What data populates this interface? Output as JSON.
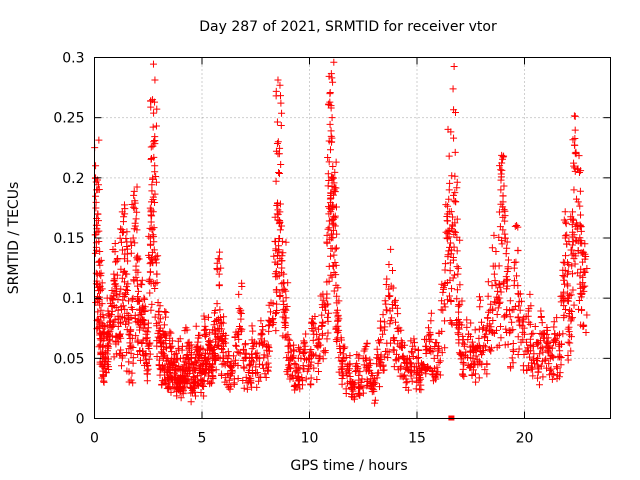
{
  "chart_data": {
    "type": "scatter",
    "title": "Day 287 of 2021, SRMTID for receiver vtor",
    "xlabel": "GPS time / hours",
    "ylabel": "SRMTID / TECUs",
    "xlim": [
      0,
      24
    ],
    "ylim": [
      0,
      0.3
    ],
    "x_ticks": [
      0,
      5,
      10,
      15,
      20
    ],
    "x_tick_labels": [
      "0",
      "5",
      "10",
      "15",
      "20"
    ],
    "y_ticks": [
      0,
      0.05,
      0.1,
      0.15,
      0.2,
      0.25,
      0.3
    ],
    "y_tick_labels": [
      "0",
      "0.05",
      "0.1",
      "0.15",
      "0.2",
      "0.25",
      "0.3"
    ],
    "grid": true,
    "marker": "plus",
    "color": "#ff0000",
    "series": [
      {
        "name": "SRMTID",
        "note": "dense scatter; representative points read from the figure",
        "points": [
          [
            0.05,
            0.2
          ],
          [
            0.1,
            0.19
          ],
          [
            0.15,
            0.17
          ],
          [
            0.2,
            0.13
          ],
          [
            0.25,
            0.11
          ],
          [
            0.3,
            0.09
          ],
          [
            0.35,
            0.07
          ],
          [
            0.4,
            0.06
          ],
          [
            0.5,
            0.05
          ],
          [
            0.6,
            0.07
          ],
          [
            0.7,
            0.08
          ],
          [
            0.8,
            0.1
          ],
          [
            0.9,
            0.12
          ],
          [
            1.0,
            0.11
          ],
          [
            1.1,
            0.09
          ],
          [
            1.2,
            0.08
          ],
          [
            1.3,
            0.14
          ],
          [
            1.4,
            0.17
          ],
          [
            1.5,
            0.12
          ],
          [
            1.6,
            0.07
          ],
          [
            1.7,
            0.06
          ],
          [
            1.8,
            0.15
          ],
          [
            1.9,
            0.16
          ],
          [
            2.0,
            0.11
          ],
          [
            2.1,
            0.09
          ],
          [
            2.2,
            0.08
          ],
          [
            2.3,
            0.1
          ],
          [
            2.4,
            0.07
          ],
          [
            2.5,
            0.06
          ],
          [
            2.6,
            0.15
          ],
          [
            2.65,
            0.18
          ],
          [
            2.7,
            0.265
          ],
          [
            2.75,
            0.23
          ],
          [
            2.8,
            0.21
          ],
          [
            2.9,
            0.12
          ],
          [
            3.0,
            0.08
          ],
          [
            3.1,
            0.06
          ],
          [
            3.2,
            0.05
          ],
          [
            3.3,
            0.07
          ],
          [
            3.4,
            0.05
          ],
          [
            3.5,
            0.04
          ],
          [
            3.6,
            0.06
          ],
          [
            3.7,
            0.05
          ],
          [
            3.8,
            0.04
          ],
          [
            3.9,
            0.03
          ],
          [
            4.0,
            0.05
          ],
          [
            4.1,
            0.04
          ],
          [
            4.2,
            0.03
          ],
          [
            4.3,
            0.06
          ],
          [
            4.4,
            0.04
          ],
          [
            4.5,
            0.05
          ],
          [
            4.6,
            0.03
          ],
          [
            4.7,
            0.04
          ],
          [
            4.8,
            0.06
          ],
          [
            4.9,
            0.05
          ],
          [
            5.0,
            0.04
          ],
          [
            5.1,
            0.05
          ],
          [
            5.2,
            0.07
          ],
          [
            5.3,
            0.05
          ],
          [
            5.4,
            0.06
          ],
          [
            5.5,
            0.05
          ],
          [
            5.6,
            0.07
          ],
          [
            5.7,
            0.06
          ],
          [
            5.8,
            0.12
          ],
          [
            5.9,
            0.08
          ],
          [
            6.0,
            0.06
          ],
          [
            6.2,
            0.05
          ],
          [
            6.4,
            0.04
          ],
          [
            6.6,
            0.06
          ],
          [
            6.8,
            0.09
          ],
          [
            7.0,
            0.05
          ],
          [
            7.2,
            0.04
          ],
          [
            7.4,
            0.06
          ],
          [
            7.6,
            0.05
          ],
          [
            7.8,
            0.07
          ],
          [
            8.0,
            0.06
          ],
          [
            8.2,
            0.08
          ],
          [
            8.4,
            0.13
          ],
          [
            8.5,
            0.17
          ],
          [
            8.55,
            0.23
          ],
          [
            8.6,
            0.22
          ],
          [
            8.7,
            0.16
          ],
          [
            8.8,
            0.12
          ],
          [
            8.9,
            0.09
          ],
          [
            9.0,
            0.06
          ],
          [
            9.2,
            0.05
          ],
          [
            9.4,
            0.04
          ],
          [
            9.6,
            0.05
          ],
          [
            9.8,
            0.06
          ],
          [
            10.0,
            0.05
          ],
          [
            10.2,
            0.07
          ],
          [
            10.4,
            0.06
          ],
          [
            10.6,
            0.08
          ],
          [
            10.8,
            0.1
          ],
          [
            10.9,
            0.17
          ],
          [
            10.95,
            0.27
          ],
          [
            11.0,
            0.26
          ],
          [
            11.05,
            0.25
          ],
          [
            11.1,
            0.2
          ],
          [
            11.15,
            0.19
          ],
          [
            11.2,
            0.16
          ],
          [
            11.3,
            0.09
          ],
          [
            11.4,
            0.06
          ],
          [
            11.6,
            0.05
          ],
          [
            11.8,
            0.04
          ],
          [
            12.0,
            0.03
          ],
          [
            12.2,
            0.04
          ],
          [
            12.4,
            0.03
          ],
          [
            12.6,
            0.05
          ],
          [
            12.8,
            0.04
          ],
          [
            13.0,
            0.03
          ],
          [
            13.2,
            0.05
          ],
          [
            13.4,
            0.07
          ],
          [
            13.6,
            0.09
          ],
          [
            13.8,
            0.11
          ],
          [
            14.0,
            0.08
          ],
          [
            14.2,
            0.06
          ],
          [
            14.4,
            0.05
          ],
          [
            14.6,
            0.04
          ],
          [
            14.8,
            0.06
          ],
          [
            15.0,
            0.05
          ],
          [
            15.2,
            0.04
          ],
          [
            15.4,
            0.06
          ],
          [
            15.6,
            0.07
          ],
          [
            15.8,
            0.05
          ],
          [
            16.0,
            0.06
          ],
          [
            16.2,
            0.09
          ],
          [
            16.4,
            0.15
          ],
          [
            16.5,
            0.19
          ],
          [
            16.6,
            0.14
          ],
          [
            16.7,
            0.233
          ],
          [
            16.8,
            0.18
          ],
          [
            16.9,
            0.12
          ],
          [
            17.0,
            0.08
          ],
          [
            17.2,
            0.06
          ],
          [
            17.4,
            0.07
          ],
          [
            17.6,
            0.05
          ],
          [
            17.8,
            0.06
          ],
          [
            18.0,
            0.08
          ],
          [
            18.2,
            0.07
          ],
          [
            18.4,
            0.09
          ],
          [
            18.6,
            0.12
          ],
          [
            18.8,
            0.1
          ],
          [
            18.9,
            0.19
          ],
          [
            19.0,
            0.18
          ],
          [
            19.1,
            0.15
          ],
          [
            19.2,
            0.11
          ],
          [
            19.4,
            0.08
          ],
          [
            19.6,
            0.13
          ],
          [
            19.8,
            0.09
          ],
          [
            20.0,
            0.07
          ],
          [
            20.2,
            0.08
          ],
          [
            20.4,
            0.06
          ],
          [
            20.6,
            0.05
          ],
          [
            20.8,
            0.07
          ],
          [
            21.0,
            0.06
          ],
          [
            21.2,
            0.05
          ],
          [
            21.4,
            0.07
          ],
          [
            21.6,
            0.06
          ],
          [
            21.8,
            0.1
          ],
          [
            21.9,
            0.15
          ],
          [
            22.0,
            0.12
          ],
          [
            22.1,
            0.09
          ],
          [
            22.2,
            0.14
          ],
          [
            22.3,
            0.19
          ],
          [
            22.4,
            0.22
          ],
          [
            22.5,
            0.18
          ],
          [
            22.6,
            0.16
          ],
          [
            22.7,
            0.13
          ],
          [
            22.8,
            0.11
          ]
        ]
      }
    ],
    "outlier_marker": {
      "x": 16.6,
      "y": 0.0
    }
  }
}
